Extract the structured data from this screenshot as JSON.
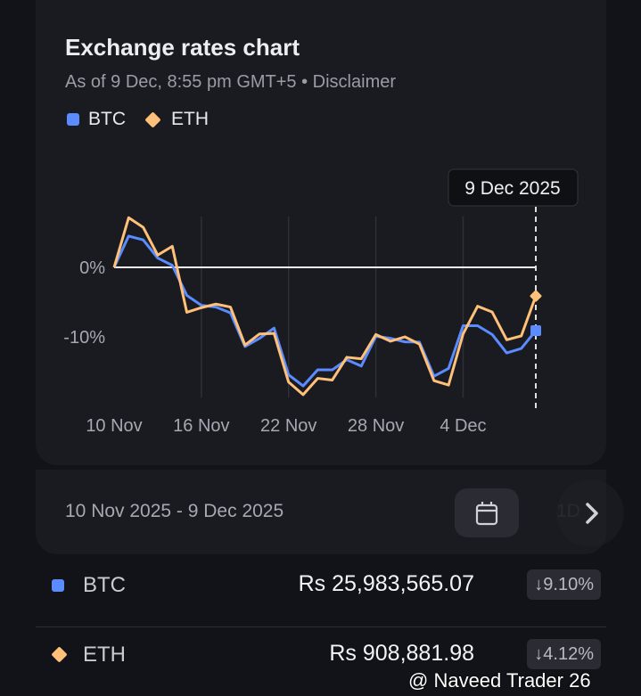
{
  "header": {
    "title": "Exchange rates chart",
    "subtitle": "As of 9 Dec, 8:55 pm GMT+5 • Disclaimer"
  },
  "legend": [
    {
      "label": "BTC",
      "color": "#5b8cff",
      "icon": "square-icon"
    },
    {
      "label": "ETH",
      "color": "#ffc079",
      "icon": "diamond-icon"
    }
  ],
  "chart_data": {
    "type": "line",
    "x": [
      "10 Nov",
      "11 Nov",
      "12 Nov",
      "13 Nov",
      "14 Nov",
      "15 Nov",
      "16 Nov",
      "17 Nov",
      "18 Nov",
      "19 Nov",
      "20 Nov",
      "21 Nov",
      "22 Nov",
      "23 Nov",
      "24 Nov",
      "25 Nov",
      "26 Nov",
      "27 Nov",
      "28 Nov",
      "29 Nov",
      "30 Nov",
      "1 Dec",
      "2 Dec",
      "3 Dec",
      "4 Dec",
      "5 Dec",
      "6 Dec",
      "7 Dec",
      "8 Dec",
      "9 Dec"
    ],
    "xticks": [
      "10 Nov",
      "16 Nov",
      "22 Nov",
      "28 Nov",
      "4 Dec"
    ],
    "yticks": [
      {
        "value": 0,
        "label": "0%"
      },
      {
        "value": -10,
        "label": "-10%"
      }
    ],
    "ylabel": "",
    "xlabel": "",
    "ylim": [
      -19,
      8
    ],
    "tooltip": "9 Dec 2025",
    "series": [
      {
        "name": "BTC",
        "color": "#5b8cff",
        "values": [
          0,
          4.5,
          3.95,
          1.34,
          0.29,
          -4.03,
          -5.46,
          -5.71,
          -6.55,
          -11.39,
          -10.21,
          -8.74,
          -15.46,
          -17.06,
          -14.75,
          -14.75,
          -13.28,
          -14.2,
          -9.92,
          -10.21,
          -10.72,
          -10.76,
          -15.67,
          -14.54,
          -8.4,
          -8.4,
          -9.66,
          -12.31,
          -11.68,
          -9.1
        ]
      },
      {
        "name": "ETH",
        "color": "#ffc079",
        "values": [
          0,
          7.14,
          5.76,
          1.76,
          3.03,
          -6.47,
          -5.8,
          -5.29,
          -5.71,
          -11.18,
          -9.58,
          -9.5,
          -16.51,
          -18.32,
          -15.97,
          -16.22,
          -12.94,
          -13.15,
          -9.66,
          -10.63,
          -10.0,
          -11.05,
          -16.3,
          -16.93,
          -9.58,
          -5.59,
          -6.43,
          -10.42,
          -9.87,
          -4.12
        ]
      }
    ]
  },
  "range": {
    "label": "10 Nov 2025 - 9 Dec 2025",
    "peek": "1D"
  },
  "rows": [
    {
      "name": "BTC",
      "value": "Rs 25,983,565.07",
      "change": "↓9.10%"
    },
    {
      "name": "ETH",
      "value": "Rs 908,881.98",
      "change": "↓4.12%"
    }
  ],
  "watermark": "@ Naveed Trader 26"
}
